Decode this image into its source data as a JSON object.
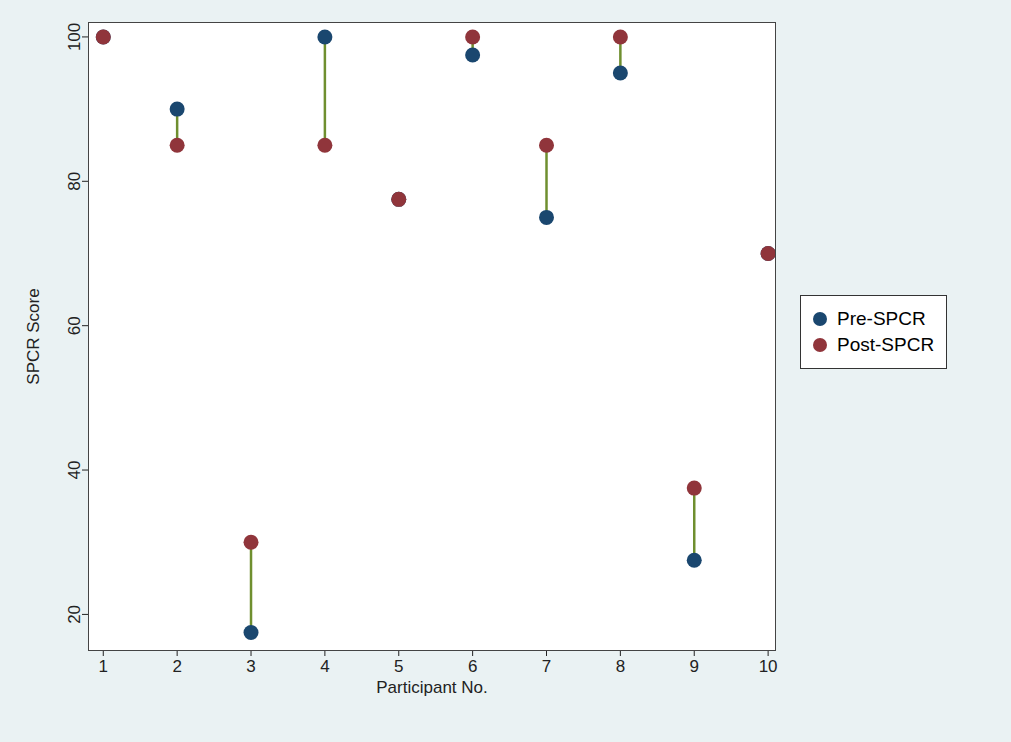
{
  "chart_data": {
    "type": "scatter",
    "x": [
      1,
      2,
      3,
      4,
      5,
      6,
      7,
      8,
      9,
      10
    ],
    "series": [
      {
        "name": "Pre-SPCR",
        "color": "#1a476f",
        "marker": "circle",
        "values": [
          100,
          90,
          17.5,
          100,
          77.5,
          97.5,
          75,
          95,
          27.5,
          70
        ]
      },
      {
        "name": "Post-SPCR",
        "color": "#90353b",
        "marker": "circle",
        "values": [
          100,
          85,
          30,
          85,
          77.5,
          100,
          85,
          100,
          37.5,
          70
        ]
      }
    ],
    "x_label": "Participant No.",
    "y_label": "SPCR Score",
    "xlim": [
      0.8,
      10.1
    ],
    "ylim": [
      15,
      102
    ],
    "xticks": [
      1,
      2,
      3,
      4,
      5,
      6,
      7,
      8,
      9,
      10
    ],
    "yticks": [
      20,
      40,
      60,
      80,
      100
    ],
    "grid": true,
    "legend": "right"
  }
}
